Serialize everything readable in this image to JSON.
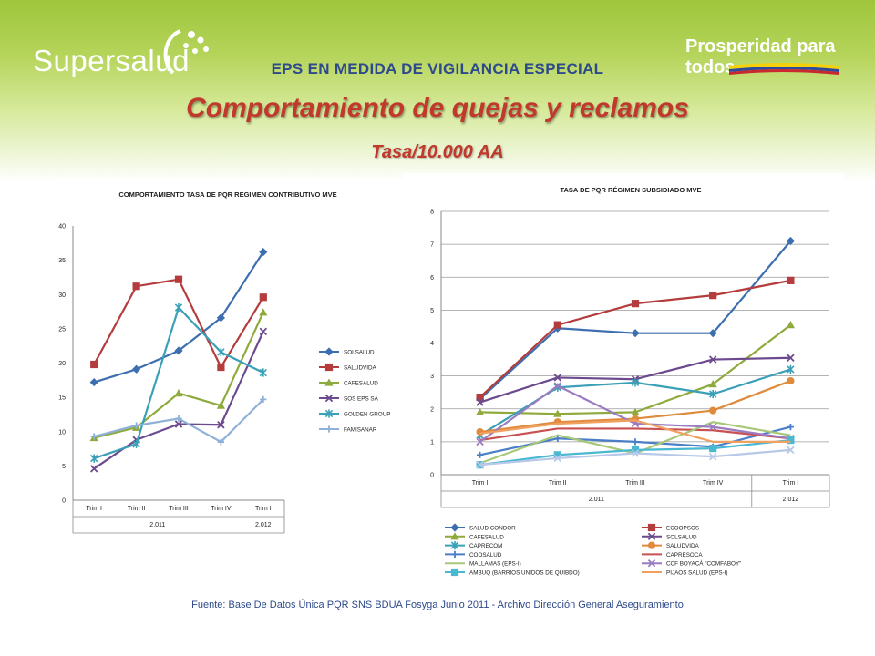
{
  "header": {
    "logo_text": "Supersalud",
    "slogan": "Prosperidad para todos",
    "eps_heading": "EPS EN MEDIDA DE VIGILANCIA ESPECIAL",
    "title": "Comportamiento de  quejas y reclamos",
    "subtitle": "Tasa/10.000 AA"
  },
  "footer": {
    "source": "Fuente: Base De Datos Única PQR SNS BDUA Fosyga  Junio 2011 - Archivo Dirección General Aseguramiento"
  },
  "colors": {
    "brand_green": "#9ec63c",
    "title_red": "#c0392b",
    "heading_blue": "#2e4a8c"
  },
  "chart_data": [
    {
      "type": "line",
      "title": "COMPORTAMIENTO TASA DE PQR  REGIMEN CONTRIBUTIVO MVE",
      "categories": [
        "Trim I",
        "Trim II",
        "Trim III",
        "Trim IV",
        "Trim I"
      ],
      "groups": [
        {
          "label": "2.011",
          "span": 4
        },
        {
          "label": "2.012",
          "span": 1
        }
      ],
      "ylim": [
        0,
        40
      ],
      "yticks": [
        0,
        5,
        10,
        15,
        20,
        25,
        30,
        35,
        40
      ],
      "grid": false,
      "legend": "right",
      "series": [
        {
          "name": "SOLSALUD",
          "color": "#3d6fb0",
          "marker": "diamond",
          "values": [
            17.2,
            19.1,
            21.8,
            26.6,
            36.2
          ]
        },
        {
          "name": "SALUDVIDA",
          "color": "#b43c3c",
          "marker": "square",
          "values": [
            19.8,
            31.2,
            32.2,
            19.4,
            29.6
          ]
        },
        {
          "name": "CAFESALUD",
          "color": "#8faa3c",
          "marker": "triangle",
          "values": [
            9.1,
            10.6,
            15.6,
            13.8,
            27.4
          ]
        },
        {
          "name": "SOS EPS SA",
          "color": "#6b4a8e",
          "marker": "x",
          "values": [
            4.6,
            8.8,
            11.1,
            11.0,
            24.6
          ]
        },
        {
          "name": "GOLDEN GROUP",
          "color": "#3aa0b8",
          "marker": "star",
          "values": [
            6.1,
            8.2,
            28.1,
            21.6,
            18.6
          ]
        },
        {
          "name": "FAMISANAR",
          "color": "#8fb0d8",
          "marker": "plus",
          "values": [
            9.3,
            10.9,
            11.9,
            8.5,
            14.7
          ]
        }
      ]
    },
    {
      "type": "line",
      "title": "TASA DE PQR  RÉGIMEN SUBSIDIADO MVE",
      "categories": [
        "Trim I",
        "Trim II",
        "Trim III",
        "Trim IV",
        "Trim I"
      ],
      "groups": [
        {
          "label": "2.011",
          "span": 4
        },
        {
          "label": "2.012",
          "span": 1
        }
      ],
      "ylim": [
        0,
        8
      ],
      "yticks": [
        0,
        1,
        2,
        3,
        4,
        5,
        6,
        7,
        8
      ],
      "grid": true,
      "legend": "bottom",
      "series": [
        {
          "name": "SALUD CONDOR",
          "color": "#3d6fb0",
          "marker": "diamond",
          "values": [
            2.3,
            4.45,
            4.3,
            4.3,
            7.1
          ]
        },
        {
          "name": "ECOOPSOS",
          "color": "#b43c3c",
          "marker": "square",
          "values": [
            2.35,
            4.55,
            5.2,
            5.45,
            5.9
          ]
        },
        {
          "name": "CAFESALUD",
          "color": "#8faa3c",
          "marker": "triangle",
          "values": [
            1.9,
            1.85,
            1.9,
            2.75,
            4.55
          ]
        },
        {
          "name": "SOLSALUD",
          "color": "#6b4a8e",
          "marker": "x",
          "values": [
            2.2,
            2.95,
            2.9,
            3.5,
            3.55
          ]
        },
        {
          "name": "CAPRECOM",
          "color": "#3aa0b8",
          "marker": "star",
          "values": [
            1.2,
            2.65,
            2.8,
            2.45,
            3.2
          ]
        },
        {
          "name": "SALUDVIDA",
          "color": "#e08a3c",
          "marker": "circle",
          "values": [
            1.3,
            1.6,
            1.7,
            1.95,
            2.85
          ]
        },
        {
          "name": "COOSALUD",
          "color": "#4a7fc8",
          "marker": "plus",
          "values": [
            0.6,
            1.1,
            1.0,
            0.85,
            1.45
          ]
        },
        {
          "name": "CAPRESOCA",
          "color": "#c85050",
          "marker": "none",
          "values": [
            1.05,
            1.4,
            1.4,
            1.35,
            1.1
          ]
        },
        {
          "name": "MALLAMAS (EPS-I)",
          "color": "#a8c878",
          "marker": "none",
          "values": [
            0.35,
            1.2,
            0.65,
            1.6,
            1.2
          ]
        },
        {
          "name": "CCF BOYACÁ \"COMFABOY\"",
          "color": "#9a7cc0",
          "marker": "x",
          "values": [
            1.0,
            2.7,
            1.55,
            1.45,
            1.1
          ]
        },
        {
          "name": "AMBUQ (BARRIOS UNIDOS DE QUIBDO)",
          "color": "#4ab8d0",
          "marker": "square",
          "values": [
            0.3,
            0.6,
            0.75,
            0.8,
            1.05
          ]
        },
        {
          "name": "PIJAOS SALUD (EPS-I)",
          "color": "#f0a060",
          "marker": "none",
          "values": [
            1.25,
            1.55,
            1.65,
            1.0,
            1.0
          ]
        },
        {
          "name": "",
          "color": "#b8c8e8",
          "marker": "x",
          "values": [
            0.3,
            0.5,
            0.65,
            0.55,
            0.75
          ]
        }
      ]
    }
  ]
}
